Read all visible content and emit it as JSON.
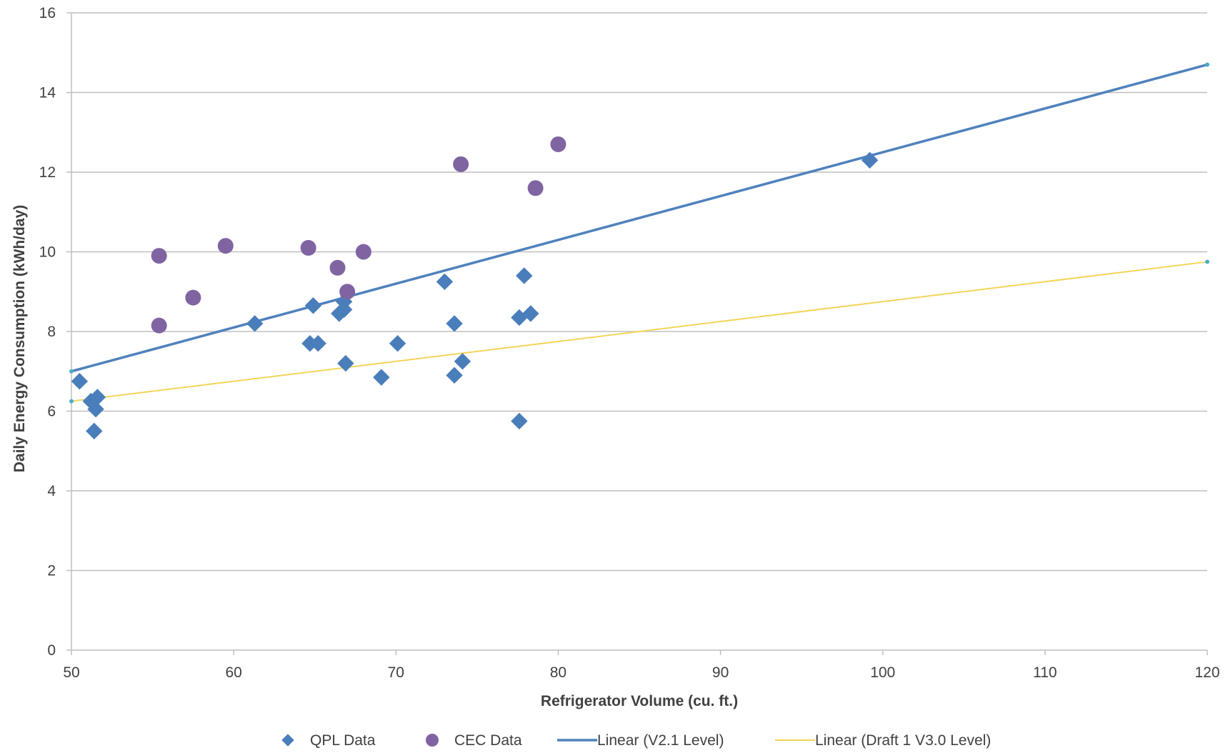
{
  "chart_data": {
    "type": "scatter",
    "title": "",
    "xlabel": "Refrigerator Volume (cu. ft.)",
    "ylabel": "Daily Energy Consumption (kWh/day)",
    "xlim": [
      50,
      120
    ],
    "ylim": [
      0,
      16
    ],
    "x_ticks": [
      "50",
      "60",
      "70",
      "80",
      "90",
      "100",
      "110",
      "120"
    ],
    "y_ticks": [
      "0",
      "2",
      "4",
      "6",
      "8",
      "10",
      "12",
      "14",
      "16"
    ],
    "grid": "horizontal",
    "legend_position": "bottom",
    "series": [
      {
        "name": "QPL Data",
        "type": "scatter",
        "marker": "diamond",
        "color": "#4a7ebb",
        "points": [
          [
            50.5,
            6.75
          ],
          [
            51.2,
            6.25
          ],
          [
            51.6,
            6.35
          ],
          [
            51.5,
            6.05
          ],
          [
            51.4,
            5.5
          ],
          [
            61.3,
            8.2
          ],
          [
            64.7,
            7.7
          ],
          [
            65.2,
            7.7
          ],
          [
            64.9,
            8.65
          ],
          [
            66.5,
            8.45
          ],
          [
            66.8,
            8.55
          ],
          [
            66.8,
            8.75
          ],
          [
            66.9,
            7.2
          ],
          [
            69.1,
            6.85
          ],
          [
            70.1,
            7.7
          ],
          [
            73.0,
            9.25
          ],
          [
            73.6,
            8.2
          ],
          [
            73.6,
            6.9
          ],
          [
            74.1,
            7.25
          ],
          [
            77.6,
            5.75
          ],
          [
            77.6,
            8.35
          ],
          [
            78.3,
            8.45
          ],
          [
            77.9,
            9.4
          ],
          [
            99.2,
            12.3
          ]
        ]
      },
      {
        "name": "CEC Data",
        "type": "scatter",
        "marker": "circle",
        "color": "#8064a2",
        "points": [
          [
            55.4,
            9.9
          ],
          [
            55.4,
            8.15
          ],
          [
            57.5,
            8.85
          ],
          [
            59.5,
            10.15
          ],
          [
            64.6,
            10.1
          ],
          [
            66.4,
            9.6
          ],
          [
            67.0,
            9.0
          ],
          [
            68.0,
            10.0
          ],
          [
            74.0,
            12.2
          ],
          [
            78.6,
            11.6
          ],
          [
            80.0,
            12.7
          ]
        ]
      },
      {
        "name": "Linear (V2.1 Level)",
        "type": "line",
        "color": "#4f81bd",
        "points": [
          [
            50,
            7.0
          ],
          [
            120,
            14.7
          ]
        ]
      },
      {
        "name": "Linear (Draft 1 V3.0 Level)",
        "type": "line",
        "color": "#f5d45a",
        "points": [
          [
            50,
            6.25
          ],
          [
            120,
            9.75
          ]
        ]
      }
    ]
  }
}
